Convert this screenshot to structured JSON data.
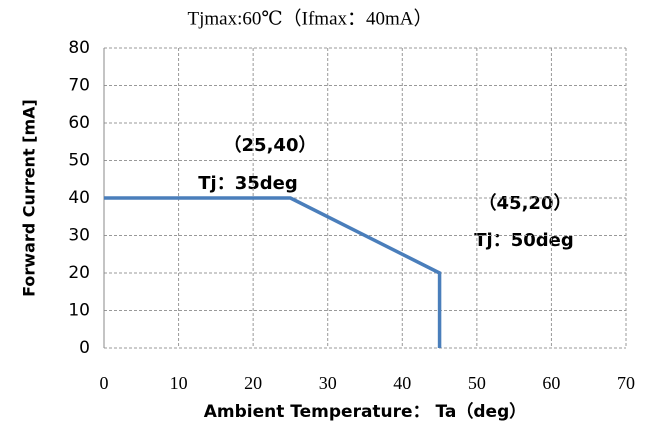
{
  "chart_data": {
    "type": "line",
    "title": "Tjmax:60℃（Ifmax：40mA）",
    "x_label": "Ambient Temperature： Ta（deg）",
    "y_label": "Forward Current [mA]",
    "annotations": [
      "（25,40）",
      "Tj：35deg",
      "（45,20）",
      "Tj：50deg"
    ],
    "x": [
      0,
      25,
      45,
      45
    ],
    "series": [
      {
        "name": "Forward Current",
        "color": "#4a7ebb",
        "values": [
          40,
          40,
          20,
          0
        ]
      }
    ],
    "xlim": [
      0,
      70
    ],
    "xticks": [
      0,
      10,
      20,
      30,
      40,
      50,
      60,
      70
    ],
    "ylim": [
      0,
      80
    ],
    "yticks": [
      0,
      10,
      20,
      30,
      40,
      50,
      60,
      70,
      80
    ],
    "grid": true
  }
}
